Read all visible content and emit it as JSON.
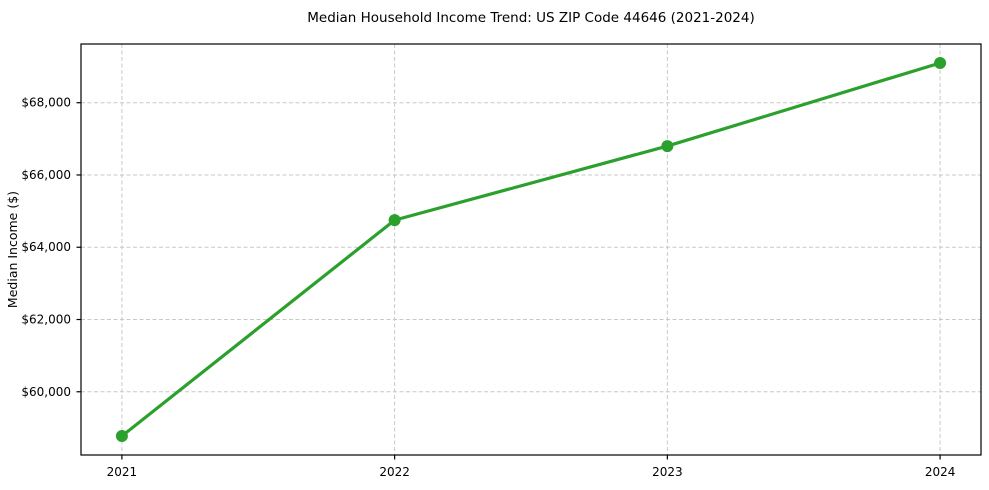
{
  "chart_data": {
    "type": "line",
    "title": "Median Household Income Trend: US ZIP Code 44646 (2021-2024)",
    "xlabel": "",
    "ylabel": "Median Income ($)",
    "x": [
      2021,
      2022,
      2023,
      2024
    ],
    "xtick_labels": [
      "2021",
      "2022",
      "2023",
      "2024"
    ],
    "series": [
      {
        "name": "Median Household Income",
        "values": [
          58775,
          64750,
          66800,
          69100
        ]
      }
    ],
    "yticks": [
      60000,
      62000,
      64000,
      66000,
      68000
    ],
    "ytick_labels": [
      "$60,000",
      "$62,000",
      "$64,000",
      "$66,000",
      "$68,000"
    ],
    "ylim": [
      58250,
      69625
    ],
    "xlim": [
      2020.85,
      2024.15
    ],
    "grid": true,
    "grid_style": "dashed",
    "legend_position": "none",
    "colors": {
      "line": "#2ca02c",
      "marker": "#2ca02c",
      "grid": "#c8c8c8",
      "spine": "#000000",
      "text": "#000000",
      "background": "#ffffff"
    }
  }
}
